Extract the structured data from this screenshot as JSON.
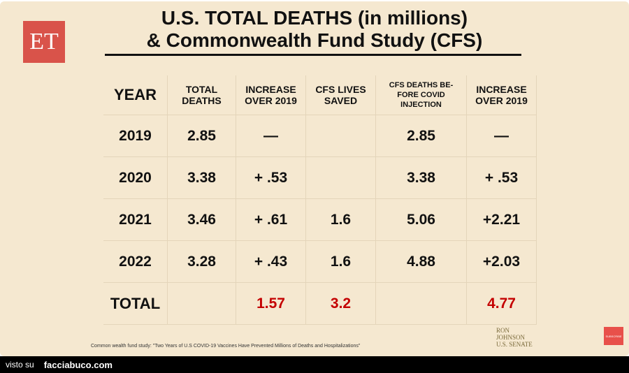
{
  "header": {
    "logo": "ET",
    "title_lines": [
      "U.S. TOTAL DEATHS (in millions)",
      "& Commonwealth Fund Study (CFS)"
    ]
  },
  "table": {
    "columns": [
      [
        "YEAR"
      ],
      [
        "TOTAL",
        "DEATHS"
      ],
      [
        "INCREASE",
        "OVER 2019"
      ],
      [
        "CFS LIVES",
        "SAVED"
      ],
      [
        "CFS DEATHS BE-",
        "FORE COVID",
        "INJECTION"
      ],
      [
        "INCREASE",
        "OVER 2019"
      ]
    ],
    "rows": [
      [
        "2019",
        "2.85",
        "—",
        null,
        "2.85",
        "—"
      ],
      [
        "2020",
        "3.38",
        "+ .53",
        null,
        "3.38",
        "+ .53"
      ],
      [
        "2021",
        "3.46",
        "+ .61",
        "1.6",
        "5.06",
        "+2.21"
      ],
      [
        "2022",
        "3.28",
        "+ .43",
        "1.6",
        "4.88",
        "+2.03"
      ],
      [
        "TOTAL",
        null,
        "1.57",
        "3.2",
        null,
        "4.77"
      ]
    ]
  },
  "footnote": "Common wealth fund study: \"Two Years of U.S COVID-19 Vaccines Have Prevented Millions of Deaths and Hospitalizations\"",
  "badge": [
    "RON",
    "JOHNSON",
    "U.S. SENATE"
  ],
  "subscribe": "SUBSCRIBE",
  "watermark": {
    "prefix": "visto su",
    "site": "facciabuco.com"
  }
}
